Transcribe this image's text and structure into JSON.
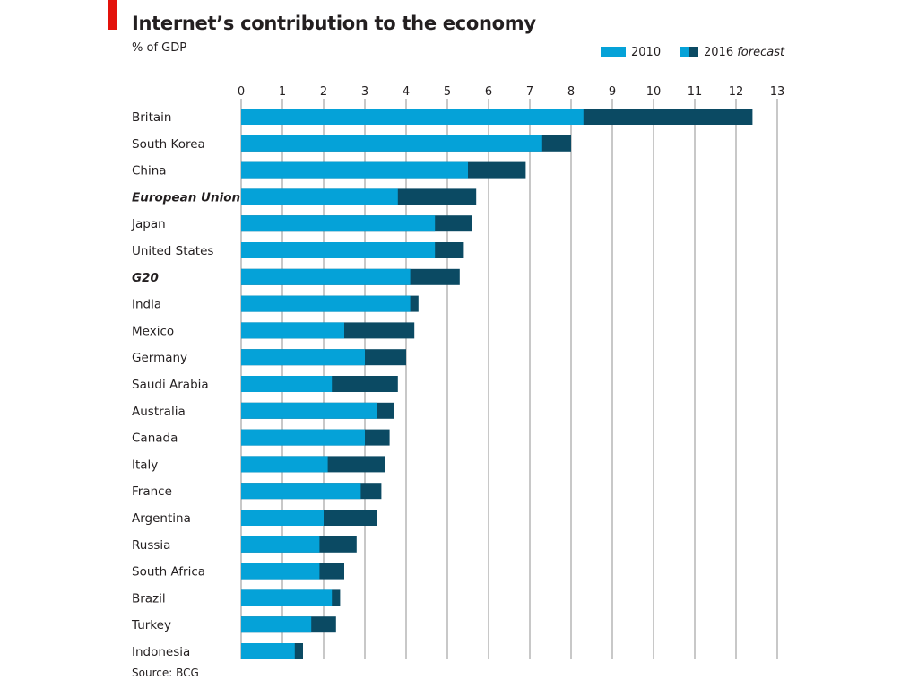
{
  "header": {
    "title": "Internet’s contribution to the economy",
    "subtitle": "% of GDP"
  },
  "legend": {
    "label_2010": "2010",
    "label_2016_year": "2016",
    "label_2016_note": "forecast"
  },
  "footer": {
    "source": "Source: BCG"
  },
  "colors": {
    "accent": "#e3120b",
    "series_2010": "#05a2d8",
    "series_2016": "#0b4a63",
    "grid": "#c8c8c8"
  },
  "chart_data": {
    "type": "bar",
    "orientation": "horizontal",
    "title": "Internet’s contribution to the economy",
    "subtitle": "% of GDP",
    "xlim": [
      0,
      13
    ],
    "x_ticks": [
      0,
      1,
      2,
      3,
      4,
      5,
      6,
      7,
      8,
      9,
      10,
      11,
      12,
      13
    ],
    "grid": true,
    "legend_placement": "top-right",
    "categories": [
      "Britain",
      "South Korea",
      "China",
      "European Union",
      "Japan",
      "United States",
      "G20",
      "India",
      "Mexico",
      "Germany",
      "Saudi Arabia",
      "Australia",
      "Canada",
      "Italy",
      "France",
      "Argentina",
      "Russia",
      "South Africa",
      "Brazil",
      "Turkey",
      "Indonesia"
    ],
    "emphasized": [
      "European Union",
      "G20"
    ],
    "series": [
      {
        "name": "2010",
        "values": [
          8.3,
          7.3,
          5.5,
          3.8,
          4.7,
          4.7,
          4.1,
          4.1,
          2.5,
          3.0,
          2.2,
          3.3,
          3.0,
          2.1,
          2.9,
          2.0,
          1.9,
          1.9,
          2.2,
          1.7,
          1.3
        ]
      },
      {
        "name": "2016 forecast",
        "values": [
          12.4,
          8.0,
          6.9,
          5.7,
          5.6,
          5.4,
          5.3,
          4.3,
          4.2,
          4.0,
          3.8,
          3.7,
          3.6,
          3.5,
          3.4,
          3.3,
          2.8,
          2.5,
          2.4,
          2.3,
          1.5
        ]
      }
    ],
    "source": "Source: BCG"
  }
}
